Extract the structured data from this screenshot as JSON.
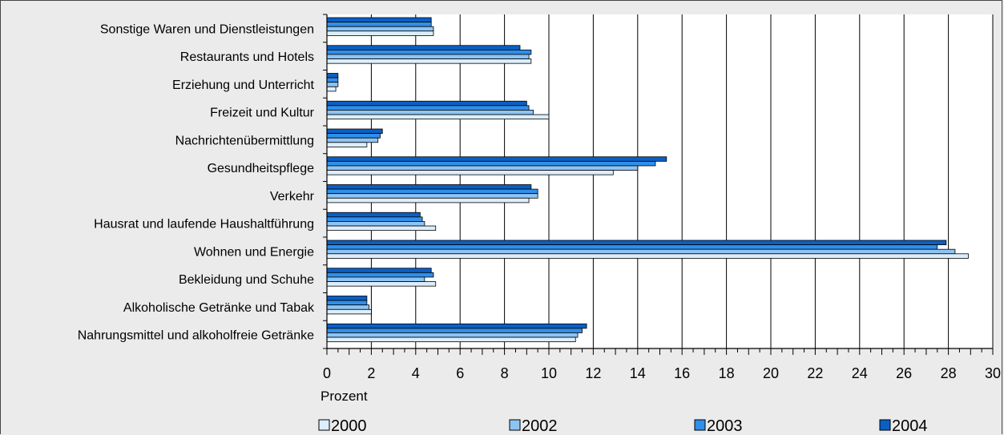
{
  "chart_data": {
    "type": "bar",
    "orientation": "horizontal",
    "categories": [
      "Sonstige Waren und Dienstleistungen",
      "Restaurants und Hotels",
      "Erziehung und Unterricht",
      "Freizeit und Kultur",
      "Nachrichtenübermittlung",
      "Gesundheitspflege",
      "Verkehr",
      "Hausrat und laufende Haushaltführung",
      "Wohnen und Energie",
      "Bekleidung und Schuhe",
      "Alkoholische Getränke und Tabak",
      "Nahrungsmittel und alkoholfreie Getränke"
    ],
    "series": [
      {
        "name": "2004",
        "color": "#0a5fc4",
        "values": [
          4.7,
          8.7,
          0.5,
          9.0,
          2.5,
          15.3,
          9.2,
          4.2,
          27.9,
          4.7,
          1.8,
          11.7
        ]
      },
      {
        "name": "2003",
        "color": "#2f8fea",
        "values": [
          4.7,
          9.2,
          0.5,
          9.1,
          2.4,
          14.8,
          9.5,
          4.3,
          27.5,
          4.8,
          1.8,
          11.5
        ]
      },
      {
        "name": "2002",
        "color": "#8cc4f4",
        "values": [
          4.8,
          9.1,
          0.5,
          9.3,
          2.3,
          14.0,
          9.5,
          4.4,
          28.3,
          4.4,
          1.9,
          11.3
        ]
      },
      {
        "name": "2000",
        "color": "#dceefc",
        "values": [
          4.8,
          9.2,
          0.4,
          10.0,
          1.8,
          12.9,
          9.1,
          4.9,
          28.9,
          4.9,
          2.0,
          11.2
        ]
      }
    ],
    "xlabel": "Prozent",
    "xlim": [
      0,
      30
    ],
    "xticks": [
      0,
      2,
      4,
      6,
      8,
      10,
      12,
      14,
      16,
      18,
      20,
      22,
      24,
      26,
      28,
      30
    ],
    "grid": true,
    "legend_placement": "bottom",
    "legend_order": [
      "2000",
      "2002",
      "2003",
      "2004"
    ]
  }
}
